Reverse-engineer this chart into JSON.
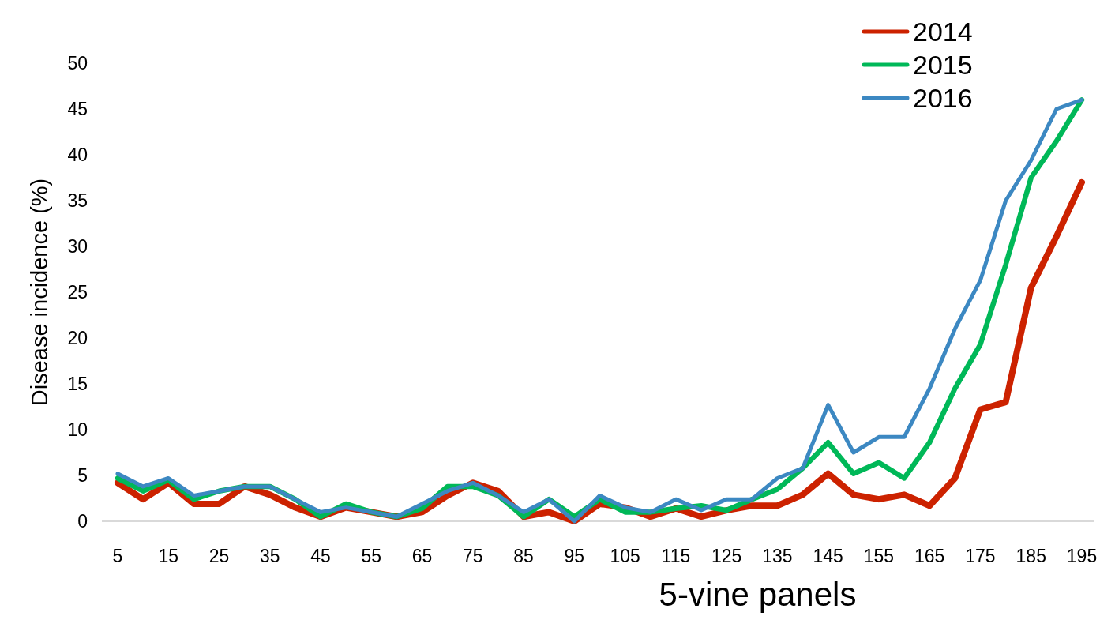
{
  "chart_data": {
    "type": "line",
    "xlabel": "5-vine panels",
    "ylabel": "Disease incidence (%)",
    "categories": [
      "5",
      null,
      "15",
      null,
      "25",
      null,
      "35",
      null,
      "45",
      null,
      "55",
      null,
      "65",
      null,
      "75",
      null,
      "85",
      null,
      "95",
      null,
      "105",
      null,
      "115",
      null,
      "125",
      null,
      "135",
      null,
      "145",
      null,
      "155",
      null,
      "165",
      null,
      "175",
      null,
      "185",
      null,
      "195"
    ],
    "ylim": [
      0,
      50
    ],
    "yticks": [
      0,
      5,
      10,
      15,
      20,
      25,
      30,
      35,
      40,
      45,
      50
    ],
    "grid": false,
    "legend": "top right",
    "marker": "none",
    "line_style": "solid",
    "series": [
      {
        "name": "2014",
        "color": "#cc2200",
        "values": [
          4.2,
          2.4,
          4.2,
          1.9,
          1.9,
          3.8,
          2.9,
          1.5,
          0.5,
          1.5,
          1.0,
          0.5,
          1.0,
          2.8,
          4.2,
          3.3,
          0.5,
          1.0,
          0.0,
          1.9,
          1.5,
          0.5,
          1.4,
          0.5,
          1.2,
          1.7,
          1.7,
          2.9,
          5.2,
          2.9,
          2.4,
          2.9,
          1.7,
          4.7,
          12.2,
          13.0,
          25.5,
          31.1,
          37.0
        ]
      },
      {
        "name": "2015",
        "color": "#00b858",
        "values": [
          4.7,
          3.3,
          4.5,
          2.4,
          3.3,
          3.8,
          3.8,
          2.4,
          0.5,
          1.9,
          1.0,
          0.5,
          1.4,
          3.8,
          3.8,
          2.8,
          0.5,
          2.4,
          0.5,
          2.4,
          1.0,
          1.0,
          1.4,
          1.7,
          1.2,
          2.4,
          3.5,
          5.8,
          8.6,
          5.2,
          6.4,
          4.7,
          8.6,
          14.5,
          19.3,
          28.0,
          37.5,
          41.5,
          46.0
        ]
      },
      {
        "name": "2016",
        "color": "#3c88c2",
        "values": [
          5.2,
          3.8,
          4.7,
          2.8,
          3.3,
          3.8,
          3.8,
          2.4,
          1.0,
          1.5,
          1.0,
          0.5,
          1.9,
          3.3,
          4.2,
          2.8,
          1.0,
          2.4,
          0.0,
          2.8,
          1.5,
          1.0,
          2.4,
          1.2,
          2.4,
          2.4,
          4.7,
          5.8,
          12.7,
          7.5,
          9.2,
          9.2,
          14.5,
          21.0,
          26.3,
          35.0,
          39.4,
          45.0,
          46.0
        ]
      }
    ]
  }
}
